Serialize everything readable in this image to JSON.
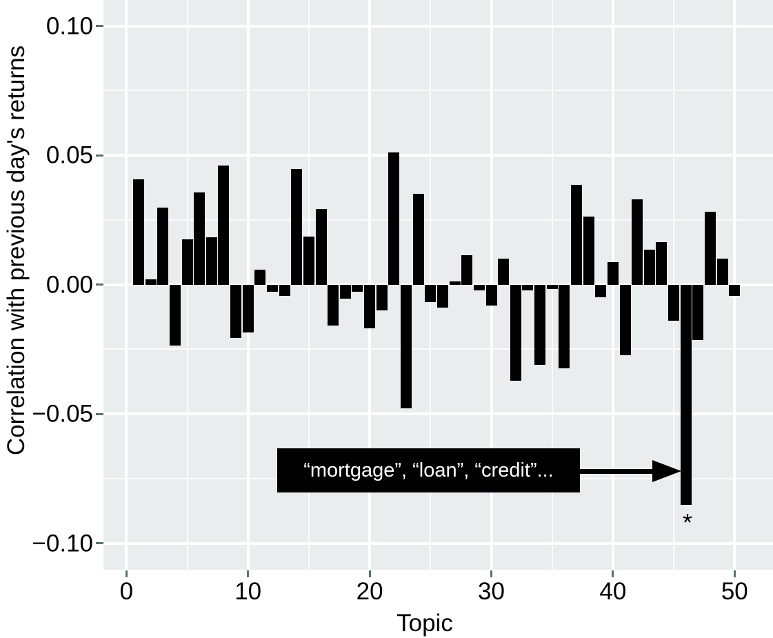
{
  "chart_data": {
    "type": "bar",
    "title": "",
    "xlabel": "Topic",
    "ylabel": "Correlation with previous day's returns",
    "x": [
      1,
      2,
      3,
      4,
      5,
      6,
      7,
      8,
      9,
      10,
      11,
      12,
      13,
      14,
      15,
      16,
      17,
      18,
      19,
      20,
      21,
      22,
      23,
      24,
      25,
      26,
      27,
      28,
      29,
      30,
      31,
      32,
      33,
      34,
      35,
      36,
      37,
      38,
      39,
      40,
      41,
      42,
      43,
      44,
      45,
      46,
      47,
      48,
      49,
      50
    ],
    "values": [
      0.0407,
      0.002,
      0.0298,
      -0.0235,
      0.0174,
      0.0355,
      0.0183,
      0.046,
      -0.0207,
      -0.0185,
      0.0057,
      -0.0027,
      -0.0045,
      0.0447,
      0.0185,
      0.0293,
      -0.0158,
      -0.0054,
      -0.0027,
      -0.0169,
      -0.01,
      0.0512,
      -0.0479,
      0.0352,
      -0.0067,
      -0.0089,
      0.0011,
      0.0113,
      -0.0023,
      -0.0081,
      0.01,
      -0.0371,
      -0.0023,
      -0.0311,
      -0.0018,
      -0.0325,
      0.0385,
      0.0263,
      -0.0049,
      0.0087,
      -0.0273,
      0.0329,
      0.0135,
      0.0164,
      -0.014,
      -0.0852,
      -0.0215,
      0.0282,
      0.01,
      -0.0045
    ],
    "x_ticks": [
      {
        "label": "0",
        "value": 0
      },
      {
        "label": "10",
        "value": 10
      },
      {
        "label": "20",
        "value": 20
      },
      {
        "label": "30",
        "value": 30
      },
      {
        "label": "40",
        "value": 40
      },
      {
        "label": "50",
        "value": 50
      }
    ],
    "y_ticks": [
      {
        "label": "0.10",
        "value": 0.1
      },
      {
        "label": "0.05",
        "value": 0.05
      },
      {
        "label": "0.00",
        "value": 0.0
      },
      {
        "label": "−0.05",
        "value": -0.05
      },
      {
        "label": "−0.10",
        "value": -0.1
      }
    ],
    "x_minor_gridlines": [
      5,
      15,
      25,
      35,
      45
    ],
    "y_minor_gridlines": [
      0.075,
      0.025,
      -0.025,
      -0.075
    ],
    "xlim": [
      -1.9,
      53.2
    ],
    "ylim": [
      -0.1102,
      0.11
    ],
    "grid": true,
    "legend": false,
    "annotation": {
      "text": "“mortgage”, “loan”, “credit”...",
      "target_topic": 46,
      "marker": "*"
    },
    "colors": {
      "bar": "#000000",
      "panel_background": "#e9eded",
      "gridline": "#ffffff",
      "tick_mark": "#5c7070",
      "annotation_background": "#000000",
      "annotation_text": "#ffffff"
    }
  }
}
